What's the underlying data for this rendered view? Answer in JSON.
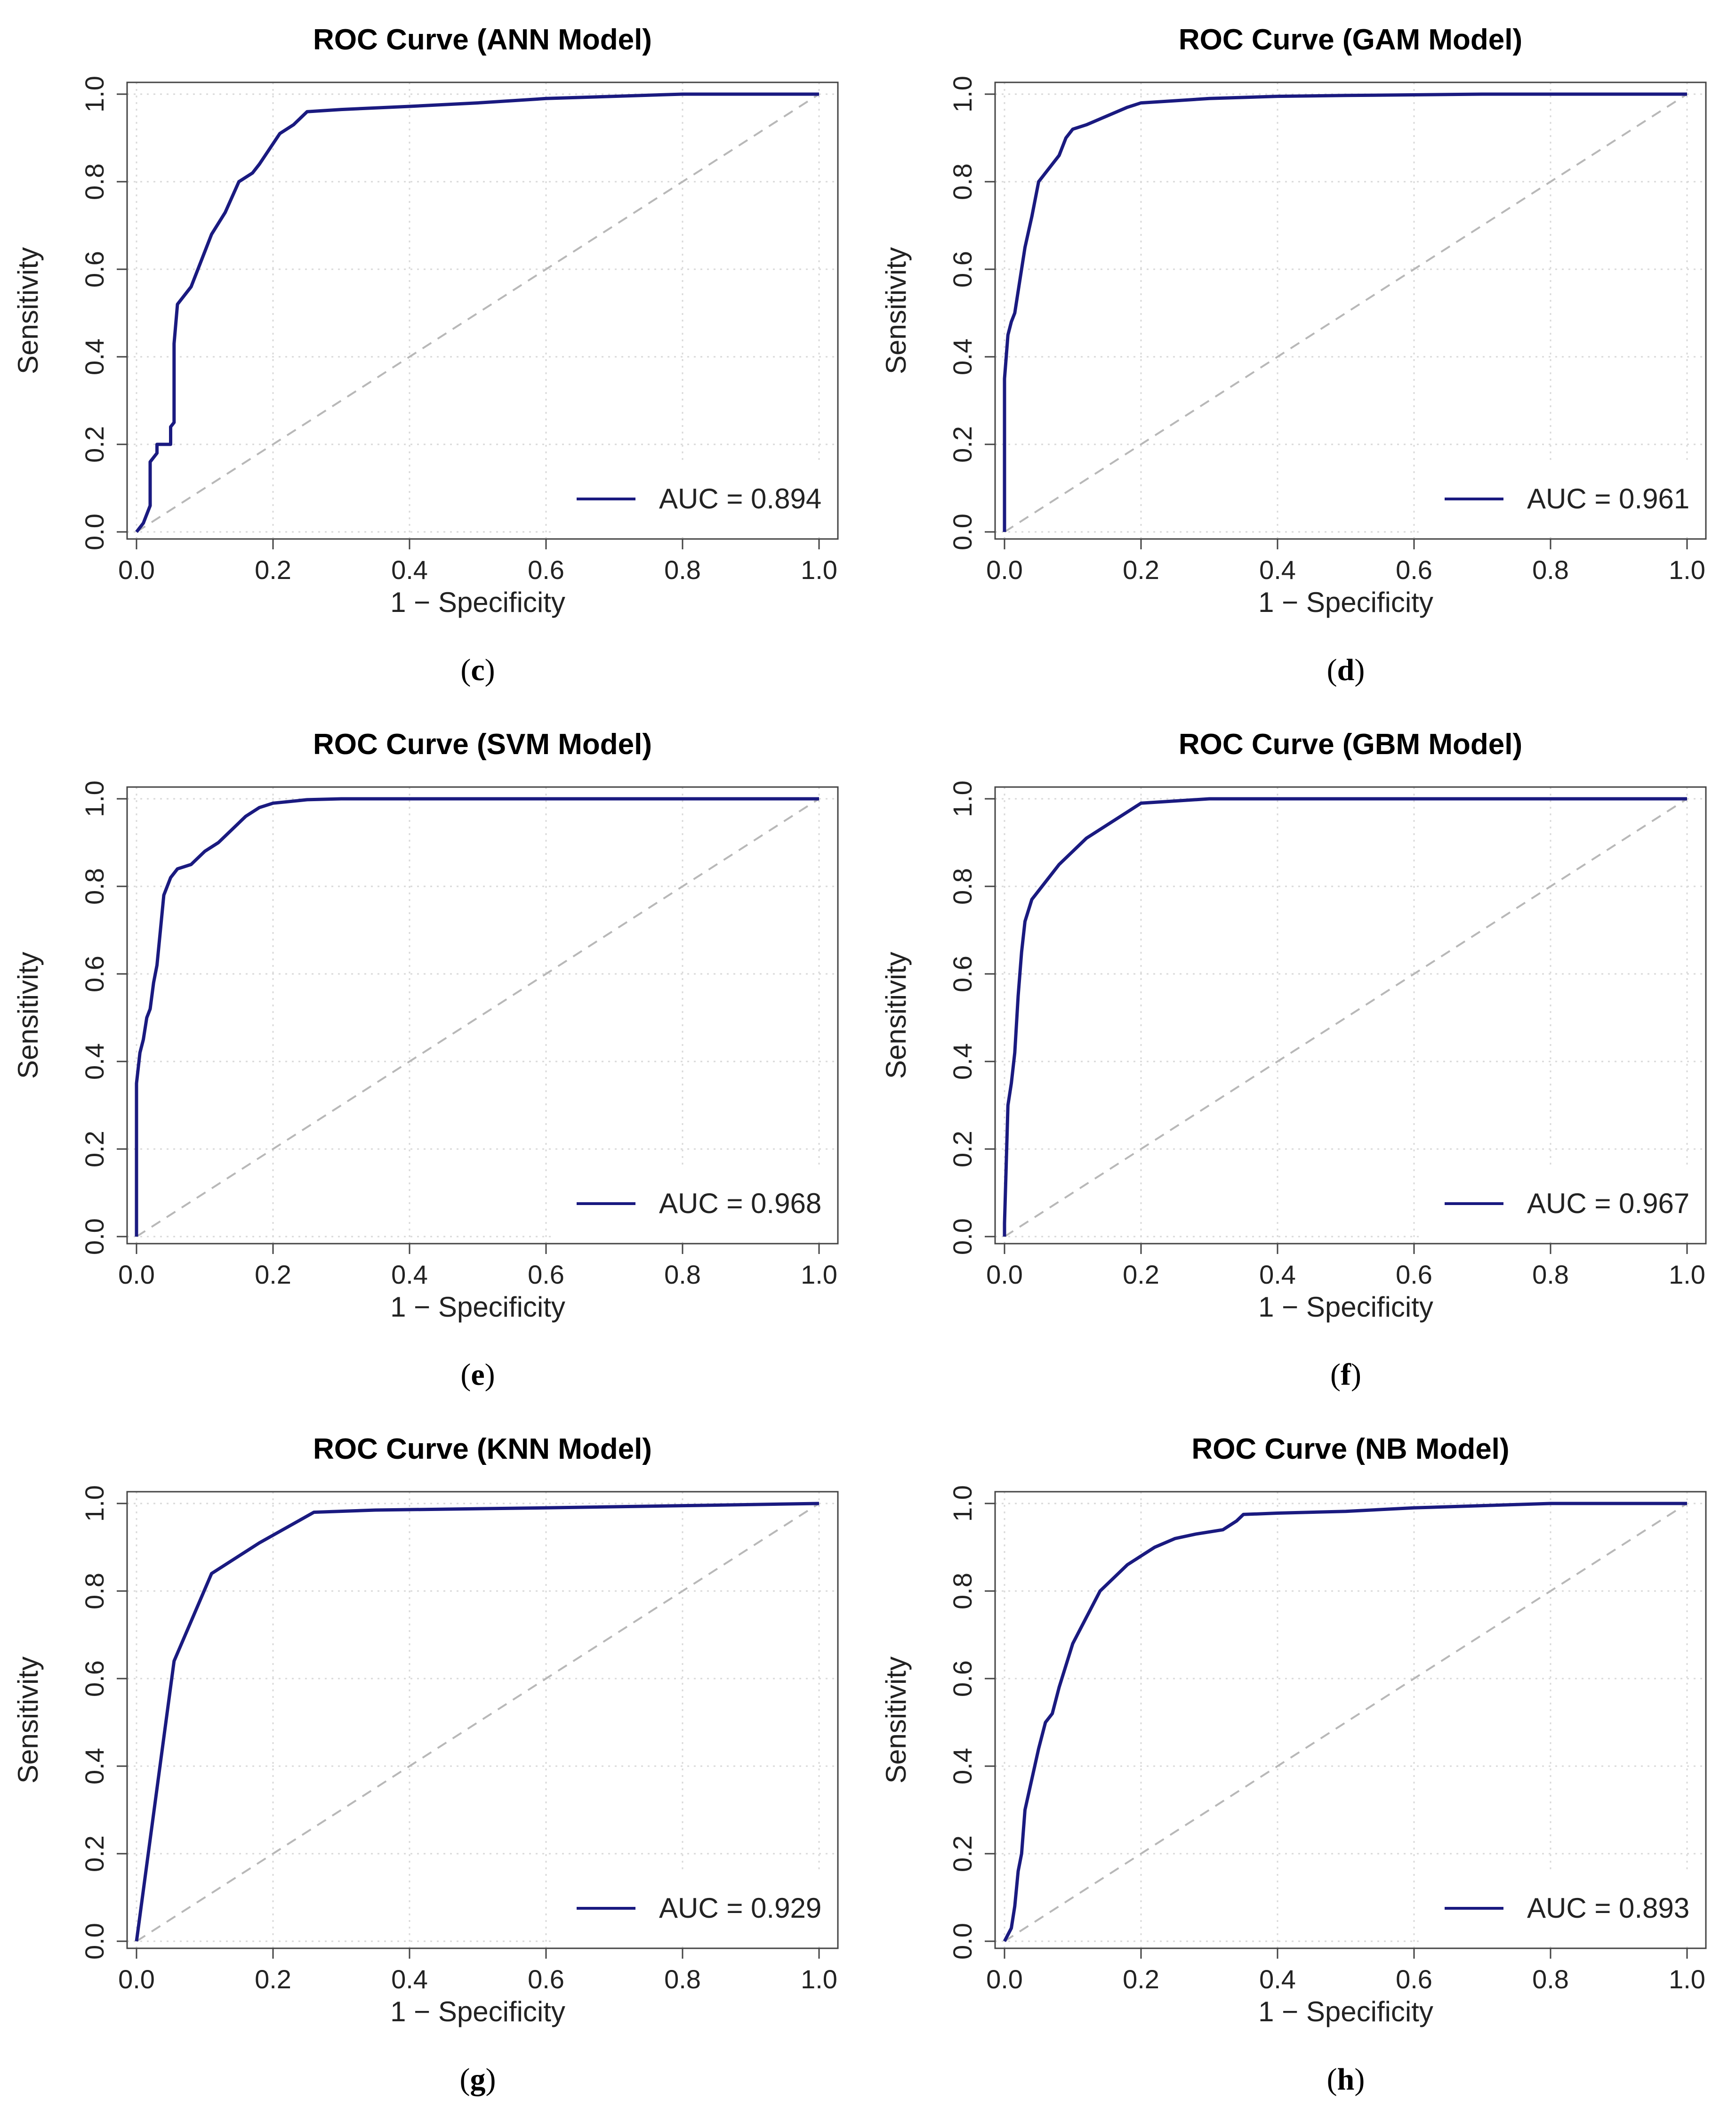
{
  "chart_data": [
    {
      "type": "line",
      "title": "ROC Curve (ANN Model)",
      "xlabel": "1 − Specificity",
      "ylabel": "Sensitivity",
      "xlim": [
        0,
        1
      ],
      "ylim": [
        0,
        1
      ],
      "xticks": [
        "0.0",
        "0.2",
        "0.4",
        "0.6",
        "0.8",
        "1.0"
      ],
      "yticks": [
        "0.0",
        "0.2",
        "0.4",
        "0.6",
        "0.8",
        "1.0"
      ],
      "grid": true,
      "legend": "bottom-right",
      "legend_label": "AUC = 0.894",
      "auc": 0.894,
      "caption_letter": "c",
      "series": [
        {
          "name": "AUC = 0.894",
          "x": [
            0.0,
            0.01,
            0.02,
            0.02,
            0.03,
            0.03,
            0.05,
            0.05,
            0.055,
            0.055,
            0.06,
            0.07,
            0.08,
            0.1,
            0.11,
            0.13,
            0.15,
            0.17,
            0.18,
            0.21,
            0.23,
            0.25,
            0.3,
            0.4,
            0.5,
            0.6,
            0.7,
            0.8,
            0.9,
            1.0
          ],
          "y": [
            0.0,
            0.02,
            0.06,
            0.16,
            0.18,
            0.2,
            0.2,
            0.24,
            0.25,
            0.43,
            0.52,
            0.54,
            0.56,
            0.64,
            0.68,
            0.73,
            0.8,
            0.82,
            0.84,
            0.91,
            0.93,
            0.96,
            0.965,
            0.972,
            0.98,
            0.99,
            0.995,
            1.0,
            1.0,
            1.0
          ]
        }
      ],
      "reference_line": {
        "x": [
          0,
          1
        ],
        "y": [
          0,
          1
        ]
      }
    },
    {
      "type": "line",
      "title": "ROC Curve (GAM Model)",
      "xlabel": "1 − Specificity",
      "ylabel": "Sensitivity",
      "xlim": [
        0,
        1
      ],
      "ylim": [
        0,
        1
      ],
      "xticks": [
        "0.0",
        "0.2",
        "0.4",
        "0.6",
        "0.8",
        "1.0"
      ],
      "yticks": [
        "0.0",
        "0.2",
        "0.4",
        "0.6",
        "0.8",
        "1.0"
      ],
      "grid": true,
      "legend": "bottom-right",
      "legend_label": "AUC = 0.961",
      "auc": 0.961,
      "caption_letter": "d",
      "series": [
        {
          "name": "AUC = 0.961",
          "x": [
            0.0,
            0.0,
            0.005,
            0.01,
            0.015,
            0.02,
            0.03,
            0.04,
            0.05,
            0.06,
            0.08,
            0.09,
            0.1,
            0.12,
            0.15,
            0.18,
            0.2,
            0.25,
            0.3,
            0.4,
            0.5,
            0.7,
            1.0
          ],
          "y": [
            0.0,
            0.35,
            0.45,
            0.48,
            0.5,
            0.55,
            0.65,
            0.72,
            0.8,
            0.82,
            0.86,
            0.9,
            0.92,
            0.93,
            0.95,
            0.97,
            0.98,
            0.985,
            0.99,
            0.995,
            0.997,
            1.0,
            1.0
          ]
        }
      ],
      "reference_line": {
        "x": [
          0,
          1
        ],
        "y": [
          0,
          1
        ]
      }
    },
    {
      "type": "line",
      "title": "ROC Curve (SVM Model)",
      "xlabel": "1 − Specificity",
      "ylabel": "Sensitivity",
      "xlim": [
        0,
        1
      ],
      "ylim": [
        0,
        1
      ],
      "xticks": [
        "0.0",
        "0.2",
        "0.4",
        "0.6",
        "0.8",
        "1.0"
      ],
      "yticks": [
        "0.0",
        "0.2",
        "0.4",
        "0.6",
        "0.8",
        "1.0"
      ],
      "grid": true,
      "legend": "bottom-right",
      "legend_label": "AUC = 0.968",
      "auc": 0.968,
      "caption_letter": "e",
      "series": [
        {
          "name": "AUC = 0.968",
          "x": [
            0.0,
            0.0,
            0.005,
            0.01,
            0.015,
            0.02,
            0.025,
            0.03,
            0.035,
            0.04,
            0.05,
            0.06,
            0.08,
            0.1,
            0.12,
            0.14,
            0.16,
            0.18,
            0.2,
            0.25,
            0.3,
            0.5,
            1.0
          ],
          "y": [
            0.0,
            0.35,
            0.42,
            0.45,
            0.5,
            0.52,
            0.58,
            0.62,
            0.7,
            0.78,
            0.82,
            0.84,
            0.85,
            0.88,
            0.9,
            0.93,
            0.96,
            0.98,
            0.99,
            0.998,
            1.0,
            1.0,
            1.0
          ]
        }
      ],
      "reference_line": {
        "x": [
          0,
          1
        ],
        "y": [
          0,
          1
        ]
      }
    },
    {
      "type": "line",
      "title": "ROC Curve (GBM Model)",
      "xlabel": "1 − Specificity",
      "ylabel": "Sensitivity",
      "xlim": [
        0,
        1
      ],
      "ylim": [
        0,
        1
      ],
      "xticks": [
        "0.0",
        "0.2",
        "0.4",
        "0.6",
        "0.8",
        "1.0"
      ],
      "yticks": [
        "0.0",
        "0.2",
        "0.4",
        "0.6",
        "0.8",
        "1.0"
      ],
      "grid": true,
      "legend": "bottom-right",
      "legend_label": "AUC = 0.967",
      "auc": 0.967,
      "caption_letter": "f",
      "series": [
        {
          "name": "AUC = 0.967",
          "x": [
            0.0,
            0.0,
            0.005,
            0.01,
            0.015,
            0.02,
            0.025,
            0.03,
            0.04,
            0.05,
            0.06,
            0.08,
            0.1,
            0.12,
            0.15,
            0.18,
            0.2,
            0.25,
            0.3,
            0.5,
            1.0
          ],
          "y": [
            0.0,
            0.03,
            0.3,
            0.35,
            0.42,
            0.55,
            0.65,
            0.72,
            0.77,
            0.79,
            0.81,
            0.85,
            0.88,
            0.91,
            0.94,
            0.97,
            0.99,
            0.995,
            1.0,
            1.0,
            1.0
          ]
        }
      ],
      "reference_line": {
        "x": [
          0,
          1
        ],
        "y": [
          0,
          1
        ]
      }
    },
    {
      "type": "line",
      "title": "ROC Curve (KNN Model)",
      "xlabel": "1 − Specificity",
      "ylabel": "Sensitivity",
      "xlim": [
        0,
        1
      ],
      "ylim": [
        0,
        1
      ],
      "xticks": [
        "0.0",
        "0.2",
        "0.4",
        "0.6",
        "0.8",
        "1.0"
      ],
      "yticks": [
        "0.0",
        "0.2",
        "0.4",
        "0.6",
        "0.8",
        "1.0"
      ],
      "grid": true,
      "legend": "bottom-right",
      "legend_label": "AUC = 0.929",
      "auc": 0.929,
      "caption_letter": "g",
      "series": [
        {
          "name": "AUC = 0.929",
          "x": [
            0.0,
            0.055,
            0.11,
            0.18,
            0.26,
            0.35,
            0.6,
            1.0
          ],
          "y": [
            0.0,
            0.64,
            0.84,
            0.91,
            0.98,
            0.985,
            0.99,
            1.0
          ]
        }
      ],
      "reference_line": {
        "x": [
          0,
          1
        ],
        "y": [
          0,
          1
        ]
      }
    },
    {
      "type": "line",
      "title": "ROC Curve (NB Model)",
      "xlabel": "1 − Specificity",
      "ylabel": "Sensitivity",
      "xlim": [
        0,
        1
      ],
      "ylim": [
        0,
        1
      ],
      "xticks": [
        "0.0",
        "0.2",
        "0.4",
        "0.6",
        "0.8",
        "1.0"
      ],
      "yticks": [
        "0.0",
        "0.2",
        "0.4",
        "0.6",
        "0.8",
        "1.0"
      ],
      "grid": true,
      "legend": "bottom-right",
      "legend_label": "AUC = 0.893",
      "auc": 0.893,
      "caption_letter": "h",
      "series": [
        {
          "name": "AUC = 0.893",
          "x": [
            0.0,
            0.01,
            0.015,
            0.02,
            0.025,
            0.03,
            0.04,
            0.05,
            0.06,
            0.07,
            0.08,
            0.1,
            0.12,
            0.14,
            0.16,
            0.18,
            0.2,
            0.22,
            0.25,
            0.28,
            0.32,
            0.34,
            0.35,
            0.4,
            0.5,
            0.6,
            0.7,
            0.8,
            0.9,
            1.0
          ],
          "y": [
            0.0,
            0.03,
            0.08,
            0.16,
            0.2,
            0.3,
            0.37,
            0.44,
            0.5,
            0.52,
            0.58,
            0.68,
            0.74,
            0.8,
            0.83,
            0.86,
            0.88,
            0.9,
            0.92,
            0.93,
            0.94,
            0.96,
            0.975,
            0.978,
            0.982,
            0.99,
            0.995,
            1.0,
            1.0,
            1.0
          ]
        }
      ],
      "reference_line": {
        "x": [
          0,
          1
        ],
        "y": [
          0,
          1
        ]
      }
    }
  ],
  "colors": {
    "curve": "#1a1a80",
    "diagonal": "#b8b8b8",
    "grid": "#d9d9d9",
    "axis": "#444444"
  }
}
